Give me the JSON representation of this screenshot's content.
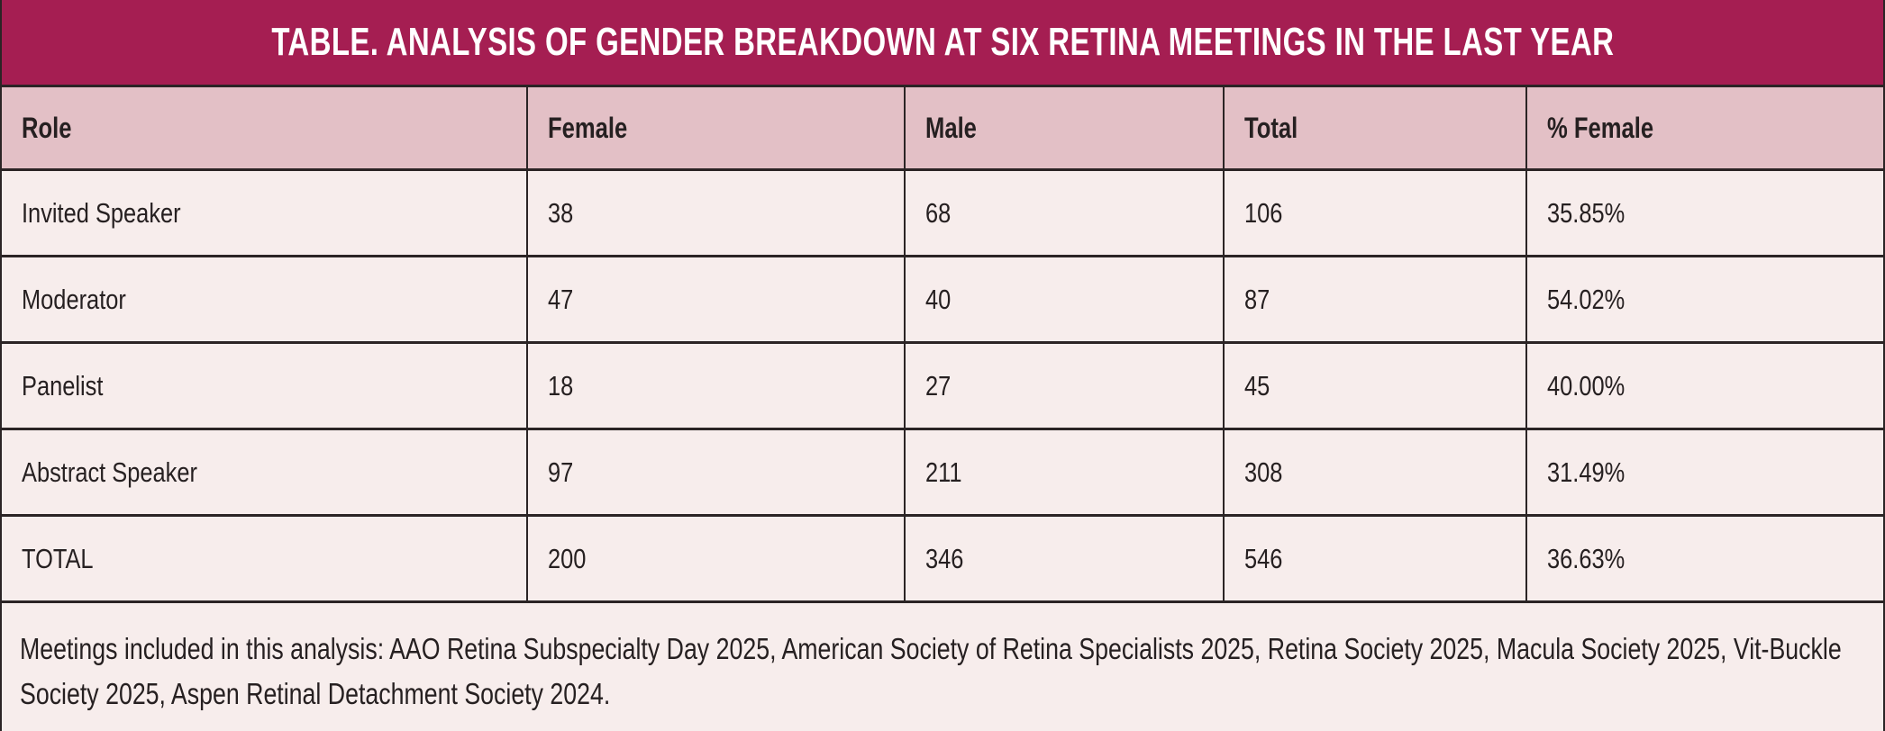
{
  "colors": {
    "title_bar_bg": "#a51e52",
    "title_text": "#ffffff",
    "header_row_bg": "#e3c0c6",
    "data_row_bg": "#f7edec",
    "rule": "#2b2425",
    "body_text": "#262021"
  },
  "chart_data": {
    "type": "table",
    "title": "TABLE. ANALYSIS OF GENDER BREAKDOWN AT SIX RETINA MEETINGS IN THE LAST YEAR",
    "columns": [
      "Role",
      "Female",
      "Male",
      "Total",
      "% Female"
    ],
    "rows": [
      [
        "Invited Speaker",
        "38",
        "68",
        "106",
        "35.85%"
      ],
      [
        "Moderator",
        "47",
        "40",
        "87",
        "54.02%"
      ],
      [
        "Panelist",
        "18",
        "27",
        "45",
        "40.00%"
      ],
      [
        "Abstract Speaker",
        "97",
        "211",
        "308",
        "31.49%"
      ],
      [
        "TOTAL",
        "200",
        "346",
        "546",
        "36.63%"
      ]
    ],
    "footnote": "Meetings included in this analysis: AAO Retina Subspecialty Day 2025, American Society of Retina Specialists 2025, Retina Society 2025, Macula Society 2025, Vit-Buckle Society 2025, Aspen Retinal Detachment Society 2024."
  }
}
